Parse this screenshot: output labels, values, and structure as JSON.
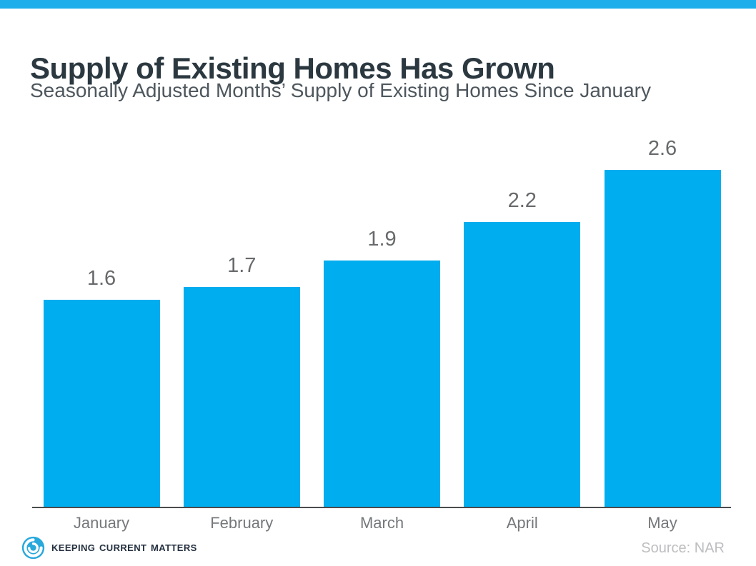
{
  "header": {
    "title": "Supply of Existing Homes Has Grown",
    "subtitle": "Seasonally Adjusted Months’ Supply of Existing Homes Since January"
  },
  "chart_data": {
    "type": "bar",
    "categories": [
      "January",
      "February",
      "March",
      "April",
      "May"
    ],
    "values": [
      1.6,
      1.7,
      1.9,
      2.2,
      2.6
    ],
    "value_labels": [
      "1.6",
      "1.7",
      "1.9",
      "2.2",
      "2.6"
    ],
    "title": "Supply of Existing Homes Has Grown",
    "subtitle": "Seasonally Adjusted Months’ Supply of Existing Homes Since January",
    "xlabel": "",
    "ylabel": "",
    "ylim": [
      0,
      2.9
    ],
    "grid": false,
    "legend": false,
    "bar_color": "#00ADEE"
  },
  "footer": {
    "brand": "Keeping Current Matters",
    "source": "Source: NAR"
  },
  "colors": {
    "accent_cyan": "#00ADEE",
    "top_bar": "#1FAEEC",
    "title_text": "#2B3840",
    "subtitle_text": "#4E575D",
    "value_label_gray": "#67696B",
    "month_label_gray": "#75787B",
    "axis_line": "#4A4B4D",
    "source_gray": "#BCBEC0",
    "brand_navy": "#24303F"
  }
}
